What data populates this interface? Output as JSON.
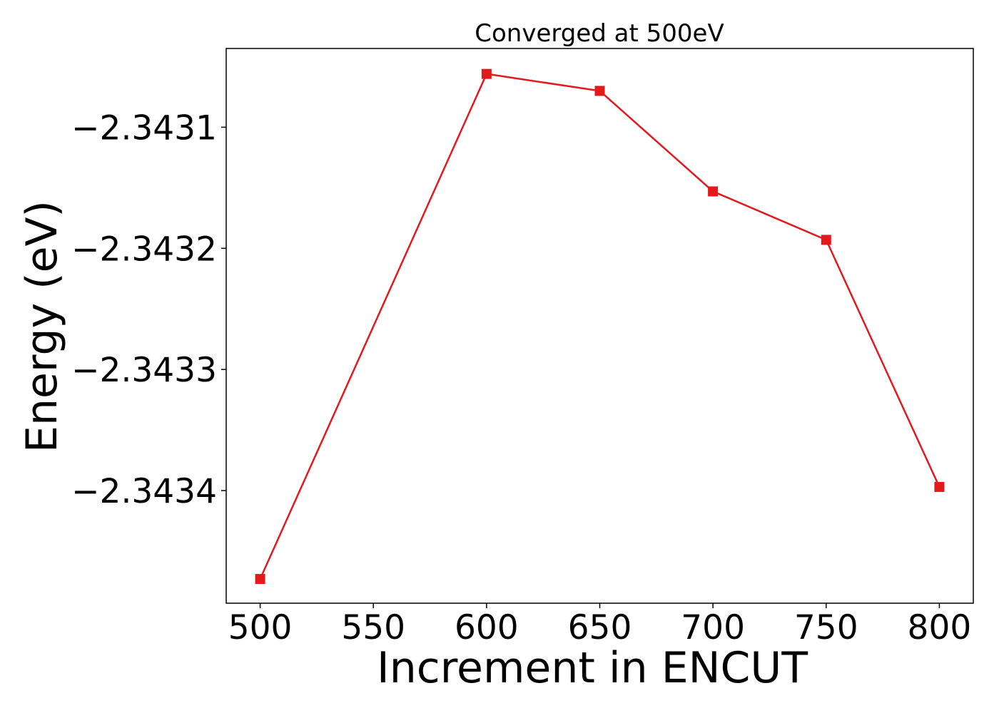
{
  "chart_data": {
    "type": "line",
    "title": "Converged at 500eV",
    "xlabel": "Increment in ENCUT",
    "ylabel": "Energy (eV)",
    "x": [
      500,
      600,
      650,
      700,
      750,
      800
    ],
    "series": [
      {
        "values": [
          -2.343473,
          -2.343056,
          -2.34307,
          -2.343153,
          -2.343193,
          -2.343397
        ],
        "color": "#e31a1c",
        "marker": "square"
      }
    ],
    "xlim": [
      485,
      815
    ],
    "ylim": [
      -2.343493,
      -2.343035
    ],
    "xticks": [
      {
        "value": 500,
        "label": "500"
      },
      {
        "value": 550,
        "label": "550"
      },
      {
        "value": 600,
        "label": "600"
      },
      {
        "value": 650,
        "label": "650"
      },
      {
        "value": 700,
        "label": "700"
      },
      {
        "value": 750,
        "label": "750"
      },
      {
        "value": 800,
        "label": "800"
      }
    ],
    "yticks": [
      {
        "value": -2.3431,
        "label": "−2.3431"
      },
      {
        "value": -2.3432,
        "label": "−2.3432"
      },
      {
        "value": -2.3433,
        "label": "−2.3433"
      },
      {
        "value": -2.3434,
        "label": "−2.3434"
      }
    ],
    "grid": false,
    "legend": "none"
  }
}
